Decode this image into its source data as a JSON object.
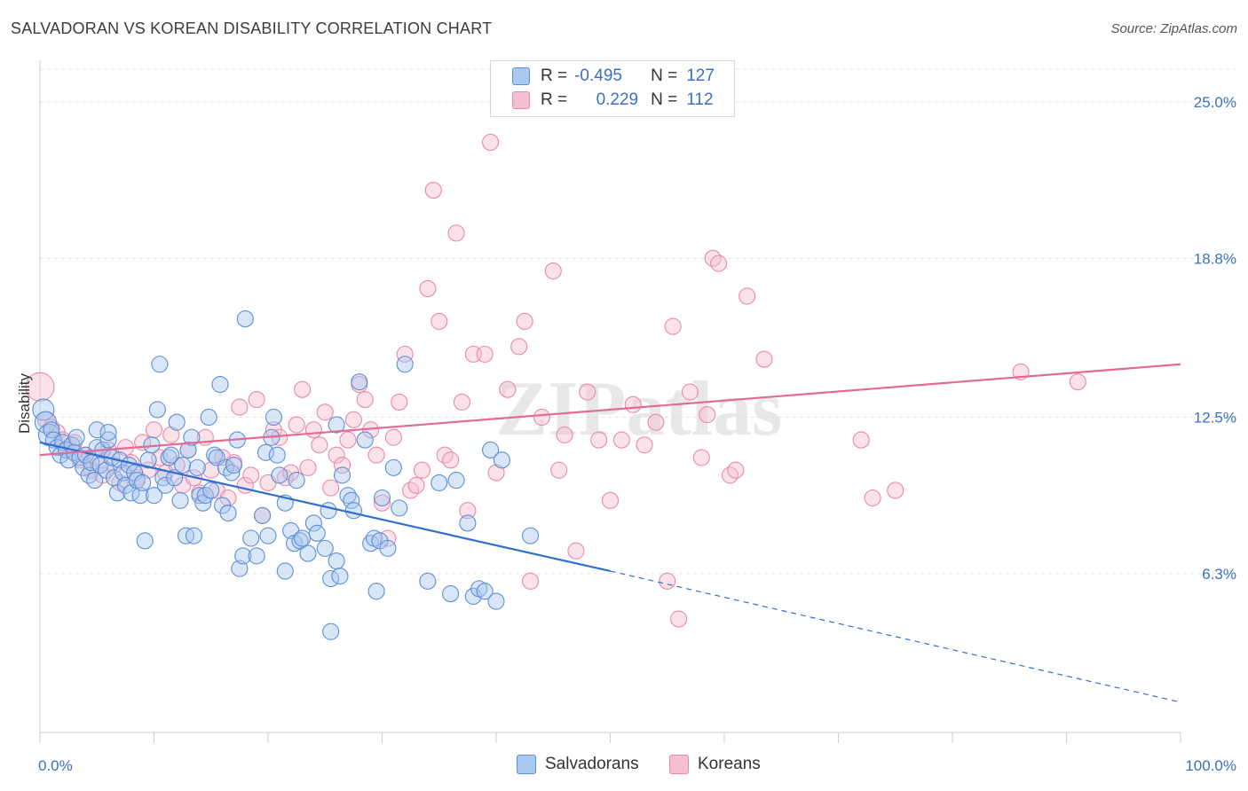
{
  "title": "SALVADORAN VS KOREAN DISABILITY CORRELATION CHART",
  "source": "Source: ZipAtlas.com",
  "watermark": "ZIPatlas",
  "legend": {
    "rows": [
      {
        "r_label": "R =",
        "r_value": "-0.495",
        "n_label": "N =",
        "n_value": "127"
      },
      {
        "r_label": "R =",
        "r_value": "0.229",
        "n_label": "N =",
        "n_value": "112"
      }
    ]
  },
  "bottom_legend": [
    "Salvadorans",
    "Koreans"
  ],
  "colors": {
    "blue_fill": "#a9c8f0",
    "blue_stroke": "#5b8fd6",
    "blue_line": "#2f6fce",
    "pink_fill": "#f6bfd0",
    "pink_stroke": "#e889a8",
    "pink_line": "#e36a96",
    "axis_text": "#3a6fc4",
    "grid": "#e4e4e4"
  },
  "chart_data": {
    "type": "scatter",
    "title": "SALVADORAN VS KOREAN DISABILITY CORRELATION CHART",
    "xlabel": "",
    "ylabel": "Disability",
    "xlim": [
      0,
      100
    ],
    "ylim": [
      0,
      26.3
    ],
    "x_tick_labels": [
      "0.0%",
      "100.0%"
    ],
    "y_ticks": [
      6.3,
      12.5,
      18.8,
      25.0
    ],
    "y_tick_labels": [
      "6.3%",
      "12.5%",
      "18.8%",
      "25.0%"
    ],
    "grid": true,
    "legend_position": "top-center",
    "series": [
      {
        "name": "Salvadorans",
        "color": "blue",
        "r": -0.495,
        "n": 127,
        "trend": {
          "x": [
            0,
            50
          ],
          "y": [
            11.5,
            6.4
          ],
          "extension": {
            "x": [
              50,
              100
            ],
            "y": [
              6.4,
              1.2
            ]
          }
        },
        "points": [
          [
            0.3,
            12.8
          ],
          [
            0.5,
            12.3
          ],
          [
            0.8,
            11.8
          ],
          [
            1,
            12.0
          ],
          [
            1.2,
            11.6
          ],
          [
            1.5,
            11.3
          ],
          [
            1.8,
            11.0
          ],
          [
            2,
            11.5
          ],
          [
            2.3,
            11.2
          ],
          [
            2.5,
            10.8
          ],
          [
            2.8,
            11.4
          ],
          [
            3,
            11.1
          ],
          [
            3.2,
            11.7
          ],
          [
            3.5,
            10.9
          ],
          [
            3.8,
            10.5
          ],
          [
            4,
            11.0
          ],
          [
            4.3,
            10.2
          ],
          [
            4.5,
            10.7
          ],
          [
            4.8,
            10.0
          ],
          [
            5,
            11.3
          ],
          [
            5.3,
            10.6
          ],
          [
            5.5,
            11.2
          ],
          [
            5.8,
            10.4
          ],
          [
            6,
            11.6
          ],
          [
            6.3,
            10.9
          ],
          [
            6.5,
            10.1
          ],
          [
            6.8,
            9.5
          ],
          [
            7,
            10.8
          ],
          [
            7.3,
            10.3
          ],
          [
            7.5,
            9.8
          ],
          [
            7.8,
            10.6
          ],
          [
            8,
            9.5
          ],
          [
            8.3,
            10.3
          ],
          [
            8.5,
            10.0
          ],
          [
            8.8,
            9.4
          ],
          [
            9,
            9.9
          ],
          [
            9.2,
            7.6
          ],
          [
            9.5,
            10.8
          ],
          [
            9.8,
            11.4
          ],
          [
            10,
            9.4
          ],
          [
            10.3,
            12.8
          ],
          [
            10.5,
            14.6
          ],
          [
            10.8,
            10.1
          ],
          [
            11,
            9.8
          ],
          [
            11.3,
            10.9
          ],
          [
            11.5,
            11.0
          ],
          [
            11.8,
            10.1
          ],
          [
            12,
            12.3
          ],
          [
            12.3,
            9.2
          ],
          [
            12.5,
            10.6
          ],
          [
            12.8,
            7.8
          ],
          [
            13,
            11.2
          ],
          [
            13.3,
            11.7
          ],
          [
            13.5,
            7.8
          ],
          [
            13.8,
            10.5
          ],
          [
            14,
            9.4
          ],
          [
            14.3,
            9.1
          ],
          [
            14.5,
            9.4
          ],
          [
            14.8,
            12.5
          ],
          [
            15,
            9.6
          ],
          [
            15.3,
            11.0
          ],
          [
            15.5,
            10.9
          ],
          [
            15.8,
            13.8
          ],
          [
            16,
            9.0
          ],
          [
            16.3,
            10.5
          ],
          [
            16.5,
            8.7
          ],
          [
            16.8,
            10.3
          ],
          [
            17,
            10.6
          ],
          [
            17.3,
            11.6
          ],
          [
            17.5,
            6.5
          ],
          [
            17.8,
            7.0
          ],
          [
            18,
            16.4
          ],
          [
            18.5,
            7.7
          ],
          [
            19,
            7.0
          ],
          [
            19.5,
            8.6
          ],
          [
            19.8,
            11.1
          ],
          [
            20,
            7.8
          ],
          [
            20.3,
            11.7
          ],
          [
            20.5,
            12.5
          ],
          [
            20.8,
            11.0
          ],
          [
            21,
            10.2
          ],
          [
            21.5,
            9.1
          ],
          [
            22,
            8.0
          ],
          [
            22.3,
            7.5
          ],
          [
            22.5,
            10.0
          ],
          [
            22.8,
            7.6
          ],
          [
            23,
            7.7
          ],
          [
            23.5,
            7.1
          ],
          [
            24,
            8.3
          ],
          [
            24.3,
            7.9
          ],
          [
            25,
            7.3
          ],
          [
            25.3,
            8.8
          ],
          [
            25.5,
            6.1
          ],
          [
            26,
            6.8
          ],
          [
            26.3,
            6.2
          ],
          [
            26.5,
            10.2
          ],
          [
            26,
            12.2
          ],
          [
            27,
            9.4
          ],
          [
            27.3,
            9.2
          ],
          [
            27.5,
            8.8
          ],
          [
            28,
            13.9
          ],
          [
            28.5,
            11.6
          ],
          [
            29,
            7.5
          ],
          [
            29.3,
            7.7
          ],
          [
            29.5,
            5.6
          ],
          [
            29.8,
            7.6
          ],
          [
            30,
            9.3
          ],
          [
            30.5,
            7.3
          ],
          [
            31,
            10.5
          ],
          [
            31.5,
            8.9
          ],
          [
            32,
            14.6
          ],
          [
            34,
            6.0
          ],
          [
            35,
            9.9
          ],
          [
            36,
            5.5
          ],
          [
            36.5,
            10.0
          ],
          [
            38,
            5.4
          ],
          [
            38.5,
            5.7
          ],
          [
            39,
            5.6
          ],
          [
            39.5,
            11.2
          ],
          [
            40,
            5.2
          ],
          [
            40.5,
            10.8
          ],
          [
            25.5,
            4.0
          ],
          [
            43,
            7.8
          ],
          [
            37.5,
            8.3
          ],
          [
            21.5,
            6.4
          ],
          [
            5,
            12.0
          ],
          [
            6,
            11.9
          ]
        ]
      },
      {
        "name": "Koreans",
        "color": "pink",
        "r": 0.229,
        "n": 112,
        "trend": {
          "x": [
            0,
            100
          ],
          "y": [
            11.0,
            14.6
          ]
        },
        "points": [
          [
            0,
            13.7
          ],
          [
            0.5,
            12.4
          ],
          [
            1,
            12.1
          ],
          [
            1.5,
            11.9
          ],
          [
            2,
            11.6
          ],
          [
            2.5,
            11.3
          ],
          [
            3,
            11.5
          ],
          [
            3.5,
            10.8
          ],
          [
            4,
            11.0
          ],
          [
            4.5,
            10.4
          ],
          [
            5,
            10.9
          ],
          [
            5.5,
            10.2
          ],
          [
            6,
            11.2
          ],
          [
            6.5,
            10.6
          ],
          [
            7,
            9.9
          ],
          [
            7.5,
            11.3
          ],
          [
            8,
            10.7
          ],
          [
            8.5,
            10.1
          ],
          [
            9,
            11.5
          ],
          [
            9.5,
            10.4
          ],
          [
            10,
            12.0
          ],
          [
            10.5,
            10.9
          ],
          [
            11,
            10.3
          ],
          [
            11.5,
            11.8
          ],
          [
            12,
            10.6
          ],
          [
            12.5,
            9.8
          ],
          [
            13,
            11.2
          ],
          [
            13.5,
            10.1
          ],
          [
            14,
            9.5
          ],
          [
            14.5,
            11.7
          ],
          [
            15,
            10.4
          ],
          [
            15.5,
            9.6
          ],
          [
            16,
            10.9
          ],
          [
            16.5,
            9.3
          ],
          [
            17,
            10.7
          ],
          [
            17.5,
            12.9
          ],
          [
            18,
            9.8
          ],
          [
            18.5,
            10.2
          ],
          [
            19,
            13.2
          ],
          [
            19.5,
            8.6
          ],
          [
            20,
            9.9
          ],
          [
            20.5,
            12.0
          ],
          [
            21,
            11.7
          ],
          [
            21.5,
            10.1
          ],
          [
            22,
            10.3
          ],
          [
            22.5,
            12.2
          ],
          [
            23,
            13.6
          ],
          [
            23.5,
            10.5
          ],
          [
            24,
            12.0
          ],
          [
            24.5,
            11.4
          ],
          [
            25,
            12.7
          ],
          [
            25.5,
            9.7
          ],
          [
            26,
            11.0
          ],
          [
            26.5,
            10.6
          ],
          [
            27,
            11.6
          ],
          [
            27.5,
            12.4
          ],
          [
            28,
            13.8
          ],
          [
            28.5,
            13.2
          ],
          [
            29,
            12.0
          ],
          [
            29.5,
            11.0
          ],
          [
            30,
            9.1
          ],
          [
            30.5,
            7.7
          ],
          [
            31,
            11.7
          ],
          [
            31.5,
            13.1
          ],
          [
            32,
            15.0
          ],
          [
            32.5,
            9.6
          ],
          [
            33,
            9.8
          ],
          [
            33.5,
            10.4
          ],
          [
            34,
            17.6
          ],
          [
            34.5,
            21.5
          ],
          [
            35,
            16.3
          ],
          [
            35.5,
            11.0
          ],
          [
            36,
            10.8
          ],
          [
            36.5,
            19.8
          ],
          [
            37,
            13.1
          ],
          [
            37.5,
            8.8
          ],
          [
            38,
            15.0
          ],
          [
            39,
            15.0
          ],
          [
            39.5,
            23.4
          ],
          [
            40,
            10.3
          ],
          [
            41,
            13.6
          ],
          [
            42,
            15.3
          ],
          [
            42.5,
            16.3
          ],
          [
            43,
            6.0
          ],
          [
            44,
            12.5
          ],
          [
            45,
            18.3
          ],
          [
            45.5,
            10.4
          ],
          [
            46,
            11.8
          ],
          [
            47,
            7.2
          ],
          [
            48,
            13.5
          ],
          [
            49,
            11.6
          ],
          [
            50,
            9.2
          ],
          [
            51,
            11.6
          ],
          [
            52,
            13.0
          ],
          [
            53,
            11.4
          ],
          [
            54,
            12.3
          ],
          [
            55,
            6.0
          ],
          [
            55.5,
            16.1
          ],
          [
            56,
            4.5
          ],
          [
            57,
            13.5
          ],
          [
            58,
            10.9
          ],
          [
            58.5,
            12.6
          ],
          [
            59,
            18.8
          ],
          [
            59.5,
            18.6
          ],
          [
            60.5,
            10.2
          ],
          [
            61,
            10.4
          ],
          [
            62,
            17.3
          ],
          [
            63.5,
            14.8
          ],
          [
            72,
            11.6
          ],
          [
            73,
            9.3
          ],
          [
            75,
            9.6
          ],
          [
            86,
            14.3
          ],
          [
            91,
            13.9
          ]
        ]
      }
    ]
  }
}
